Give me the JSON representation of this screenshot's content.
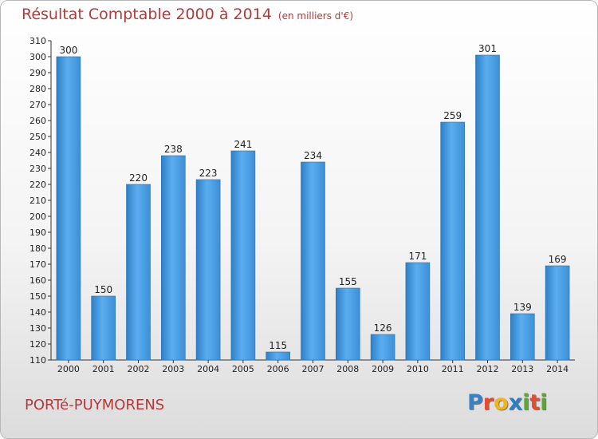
{
  "chart_data": {
    "type": "bar",
    "title": "Résultat Comptable 2000 à 2014",
    "subtitle": "(en milliers d'€)",
    "categories": [
      "2000",
      "2001",
      "2002",
      "2003",
      "2004",
      "2005",
      "2006",
      "2007",
      "2008",
      "2009",
      "2010",
      "2011",
      "2012",
      "2013",
      "2014"
    ],
    "values": [
      300,
      150,
      220,
      238,
      223,
      241,
      115,
      234,
      155,
      126,
      171,
      259,
      301,
      139,
      169
    ],
    "ylim": [
      110,
      310
    ],
    "ytick_step": 10,
    "xlabel": "",
    "ylabel": "",
    "grid": false,
    "bar_color": "#4d9de0"
  },
  "footer": {
    "location": "PORTé-PUYMORENS",
    "logo_letters": [
      "P",
      "r",
      "o",
      "x",
      "i",
      "t",
      "i"
    ],
    "logo_colors": [
      "#3a82c8",
      "#e84a2f",
      "#f2b41a",
      "#2b7fc4",
      "#5aa82c",
      "#e84a2f",
      "#5aa82c"
    ]
  },
  "colors": {
    "title": "#b33a3a",
    "axis": "#333333"
  }
}
